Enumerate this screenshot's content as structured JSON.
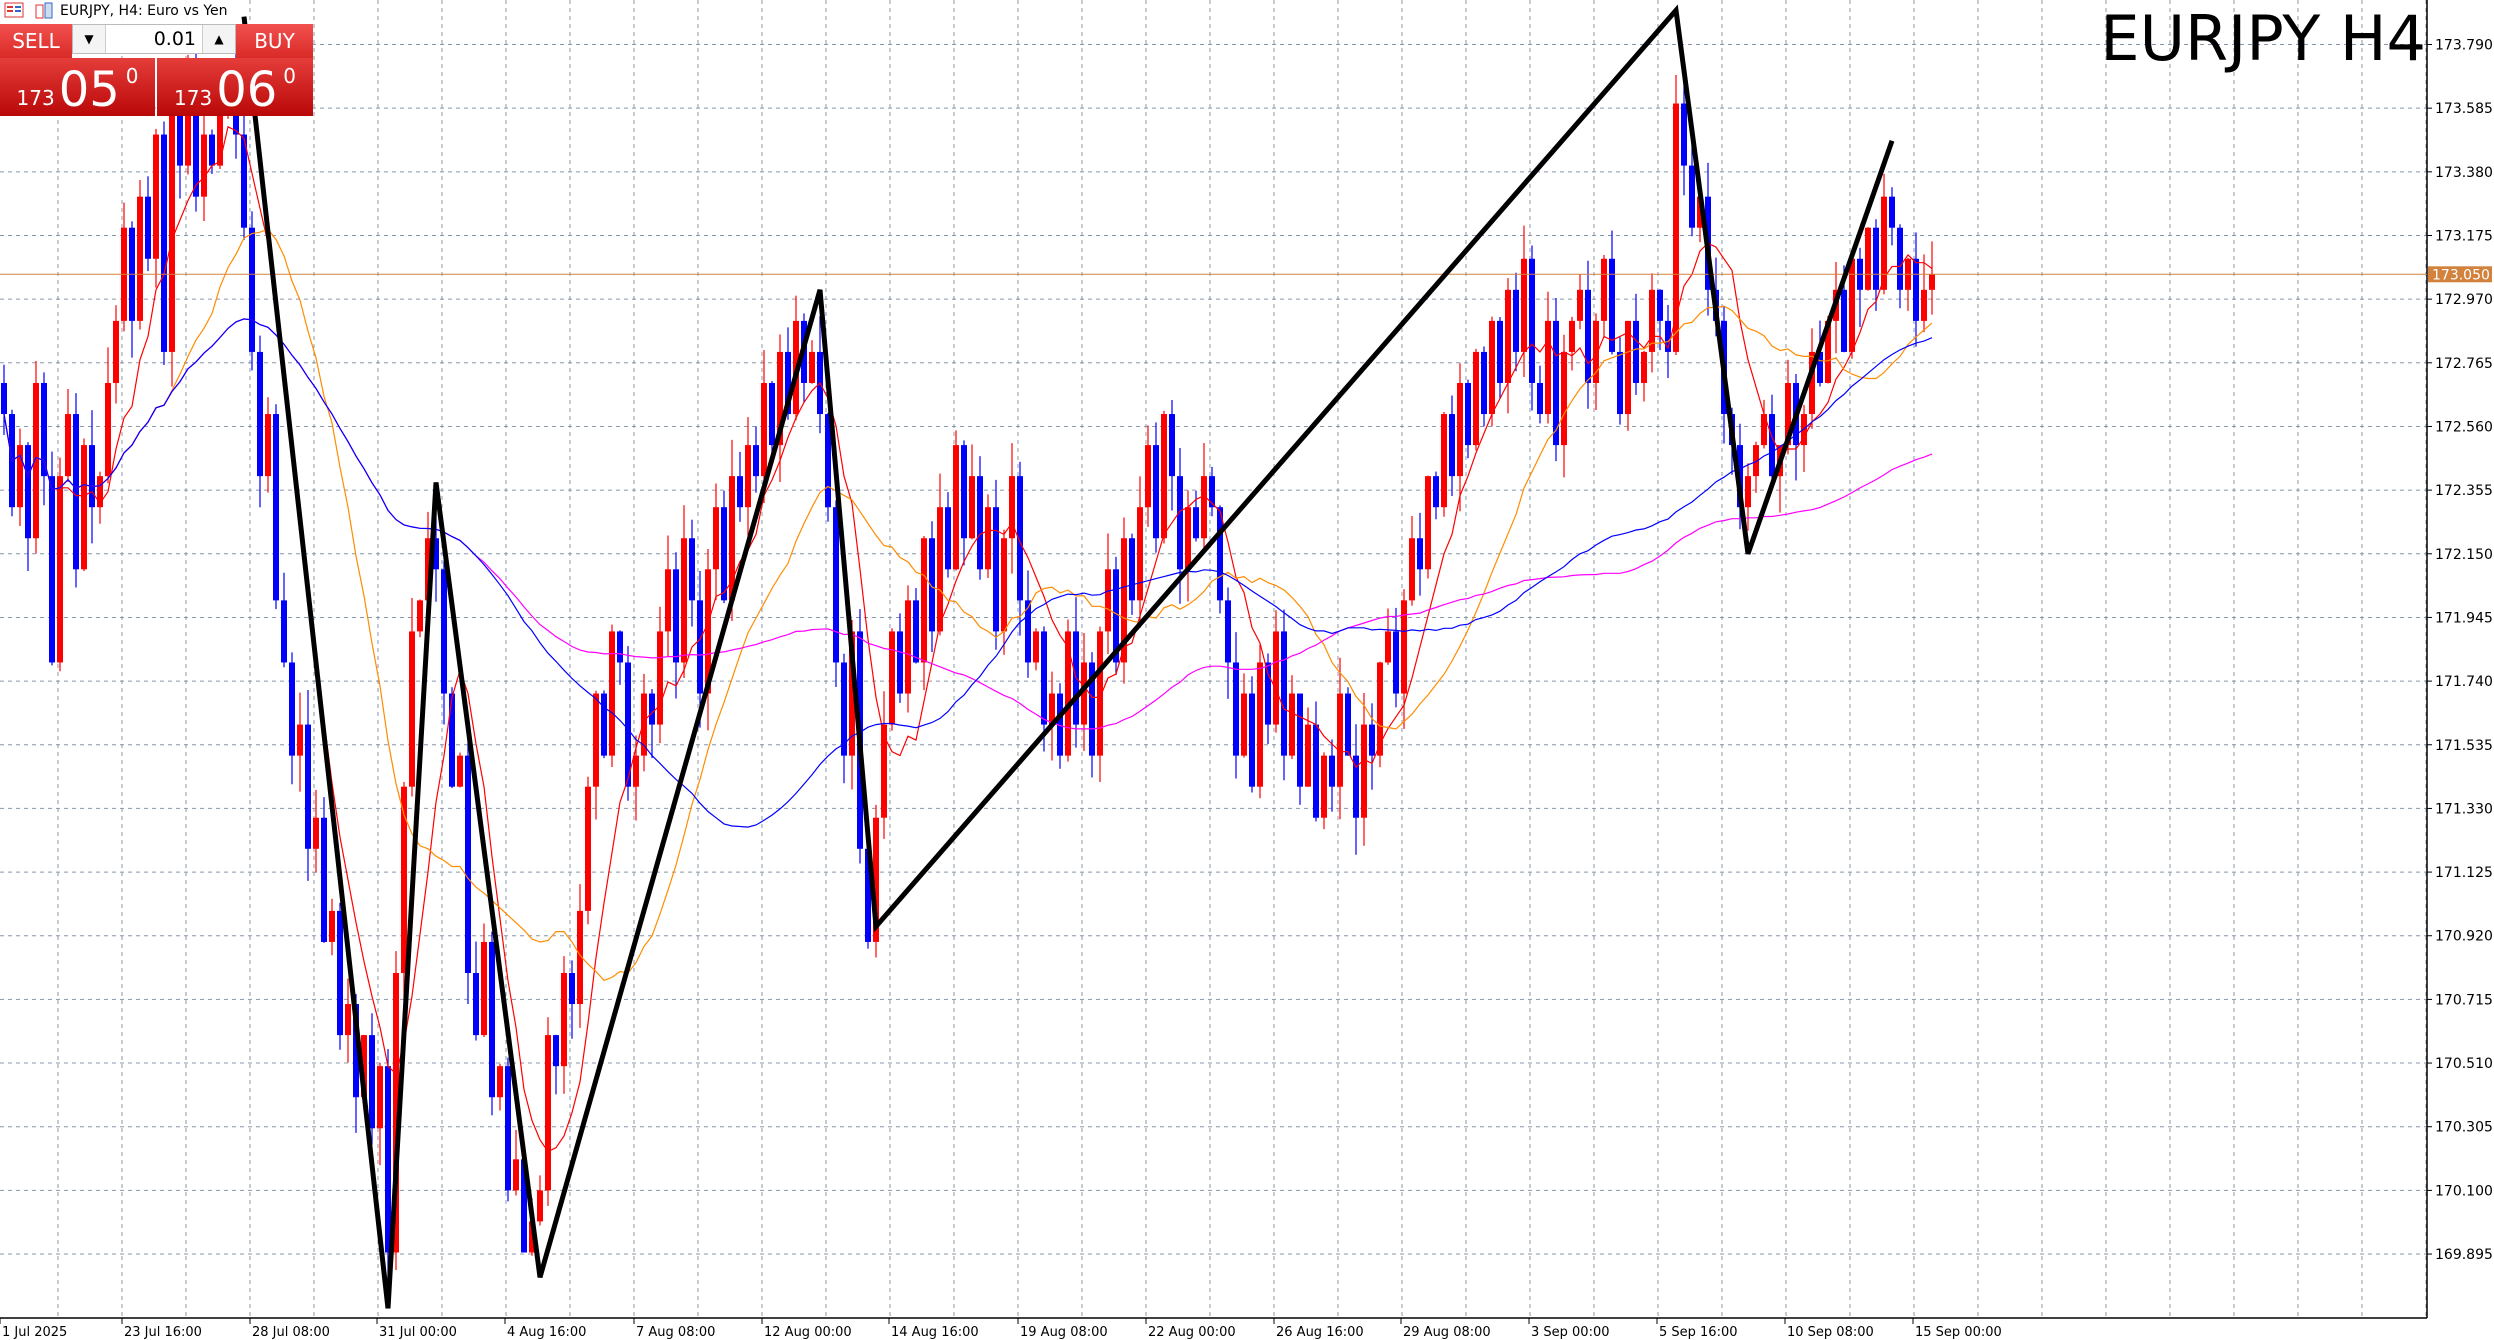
{
  "window": {
    "title": "EURJPY, H4:  Euro vs Yen"
  },
  "chart_title": "EURJPY H4",
  "trade_panel": {
    "sell_label": "SELL",
    "buy_label": "BUY",
    "lot_value": "0.01",
    "sell_price": {
      "prefix": "173",
      "big": "05",
      "sup": "0"
    },
    "buy_price": {
      "prefix": "173",
      "big": "06",
      "sup": "0"
    },
    "color": "#d92a27"
  },
  "chart_data": {
    "type": "candlestick",
    "symbol": "EURJPY",
    "timeframe": "H4",
    "bull_color": "#ff0000",
    "bear_color": "#0000ff",
    "ylim": [
      169.72,
      173.93
    ],
    "y_ticks": [
      "173.790",
      "173.585",
      "173.380",
      "173.175",
      "172.970",
      "172.765",
      "172.560",
      "172.355",
      "172.150",
      "171.945",
      "171.740",
      "171.535",
      "171.330",
      "171.125",
      "170.920",
      "170.715",
      "170.510",
      "170.305",
      "170.100",
      "169.895"
    ],
    "x_ticks": [
      "1 Jul 2025",
      "23 Jul 16:00",
      "28 Jul 08:00",
      "31 Jul 00:00",
      "4 Aug 16:00",
      "7 Aug 08:00",
      "12 Aug 00:00",
      "14 Aug 16:00",
      "19 Aug 08:00",
      "22 Aug 00:00",
      "26 Aug 16:00",
      "29 Aug 08:00",
      "3 Sep 00:00",
      "5 Sep 16:00",
      "10 Sep 08:00",
      "15 Sep 00:00"
    ],
    "current_price": "173.050",
    "current_price_color": "#d2823c",
    "closes": [
      172.6,
      172.3,
      172.5,
      172.2,
      172.7,
      172.4,
      171.8,
      172.4,
      172.6,
      172.1,
      172.5,
      172.3,
      172.4,
      172.7,
      172.9,
      173.2,
      172.9,
      173.3,
      173.1,
      173.5,
      172.8,
      173.6,
      173.4,
      173.7,
      173.3,
      173.5,
      173.4,
      173.6,
      173.7,
      173.5,
      173.2,
      172.8,
      172.4,
      172.6,
      172.0,
      171.8,
      171.5,
      171.6,
      171.2,
      171.3,
      170.9,
      171.0,
      170.6,
      170.7,
      170.4,
      170.6,
      170.3,
      170.5,
      169.9,
      170.8,
      171.4,
      171.9,
      172.0,
      172.2,
      172.1,
      171.7,
      171.4,
      171.5,
      170.8,
      170.6,
      170.9,
      170.4,
      170.5,
      170.1,
      170.2,
      169.9,
      170.0,
      170.1,
      170.6,
      170.5,
      170.8,
      170.7,
      171.0,
      171.4,
      171.7,
      171.5,
      171.9,
      171.8,
      171.4,
      171.5,
      171.7,
      171.6,
      171.9,
      172.1,
      171.8,
      172.2,
      172.0,
      171.7,
      172.1,
      172.3,
      172.0,
      172.4,
      172.3,
      172.5,
      172.4,
      172.7,
      172.5,
      172.8,
      172.6,
      172.9,
      172.7,
      172.8,
      172.6,
      172.3,
      171.8,
      171.5,
      171.9,
      171.2,
      170.9,
      171.3,
      171.6,
      171.9,
      171.7,
      172.0,
      171.8,
      172.2,
      171.9,
      172.3,
      172.1,
      172.5,
      172.2,
      172.4,
      172.1,
      172.3,
      171.9,
      172.2,
      172.4,
      172.0,
      171.8,
      171.9,
      171.6,
      171.7,
      171.5,
      171.9,
      171.6,
      171.8,
      171.5,
      171.9,
      172.1,
      171.8,
      172.2,
      172.0,
      172.3,
      172.5,
      172.2,
      172.6,
      172.4,
      172.1,
      172.3,
      172.2,
      172.4,
      172.3,
      172.0,
      171.8,
      171.5,
      171.7,
      171.4,
      171.8,
      171.6,
      171.9,
      171.5,
      171.7,
      171.4,
      171.6,
      171.3,
      171.5,
      171.4,
      171.7,
      171.5,
      171.3,
      171.6,
      171.5,
      171.8,
      171.9,
      171.7,
      172.0,
      172.2,
      172.1,
      172.4,
      172.3,
      172.6,
      172.4,
      172.7,
      172.5,
      172.8,
      172.6,
      172.9,
      172.7,
      173.0,
      172.8,
      173.1,
      172.7,
      172.6,
      172.9,
      172.5,
      172.8,
      172.9,
      173.0,
      172.7,
      172.9,
      173.1,
      172.8,
      172.6,
      172.9,
      172.7,
      172.8,
      173.0,
      172.9,
      172.8,
      173.6,
      173.4,
      173.2,
      173.3,
      173.0,
      172.9,
      172.6,
      172.5,
      172.3,
      172.4,
      172.5,
      172.6,
      172.4,
      172.5,
      172.7,
      172.5,
      172.6,
      172.8,
      172.7,
      172.9,
      173.0,
      172.8,
      173.1,
      173.0,
      173.2,
      173.0,
      173.3,
      173.2,
      173.0,
      173.1,
      172.9,
      173.0,
      173.05
    ],
    "moving_averages": [
      {
        "color": "#ff0000"
      },
      {
        "color": "#ff8c00"
      },
      {
        "color": "#ff00ff"
      },
      {
        "color": "#0000ff"
      }
    ],
    "zigzag": [
      {
        "bar": 30,
        "price": 173.88
      },
      {
        "bar": 48,
        "price": 169.72
      },
      {
        "bar": 54,
        "price": 172.38
      },
      {
        "bar": 67,
        "price": 169.82
      },
      {
        "bar": 102,
        "price": 173.0
      },
      {
        "bar": 109,
        "price": 170.95
      },
      {
        "bar": 209,
        "price": 173.9
      },
      {
        "bar": 218,
        "price": 172.15
      },
      {
        "bar": 236,
        "price": 173.48
      }
    ]
  }
}
